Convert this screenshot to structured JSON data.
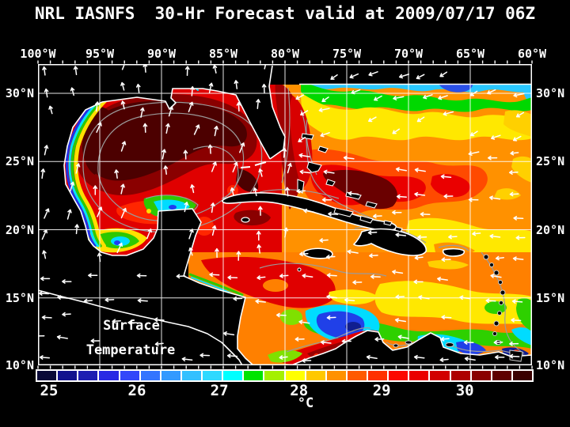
{
  "title": "NRL IASNFS  30-Hr Forecast valid at 2009/07/17 06Z",
  "axes": {
    "top_labels": [
      "100°W",
      "95°W",
      "90°W",
      "85°W",
      "80°W",
      "75°W",
      "70°W",
      "65°W",
      "60°W"
    ],
    "left_labels": [
      "30°N",
      "25°N",
      "20°N",
      "15°N",
      "10°N"
    ],
    "right_labels": [
      "30°N",
      "25°N",
      "20°N",
      "15°N",
      "10°N"
    ]
  },
  "map_overlay": {
    "line1": "Surface",
    "line2": "Temperature"
  },
  "colorbar": {
    "unit": "°C",
    "tick_labels": [
      "25",
      "26",
      "27",
      "28",
      "29",
      "30"
    ],
    "cell_colors": [
      "#0a0a38",
      "#12128e",
      "#1e1eb2",
      "#2929e4",
      "#3347fa",
      "#3375ff",
      "#339aff",
      "#33c0ff",
      "#2ed9ff",
      "#00ffff",
      "#00e400",
      "#a4f000",
      "#ffff00",
      "#ffc800",
      "#ff9100",
      "#ff5a00",
      "#ff3000",
      "#fc0800",
      "#ea0000",
      "#d20000",
      "#ae0000",
      "#8a0000",
      "#5e0000",
      "#3a0000"
    ]
  },
  "colors": {
    "background": "#000000",
    "text": "#ffffff",
    "coastline": "#ffffff",
    "grid_lines": "#ffffff",
    "depth_contours": "#9b9b9b",
    "land": "#000000"
  }
}
